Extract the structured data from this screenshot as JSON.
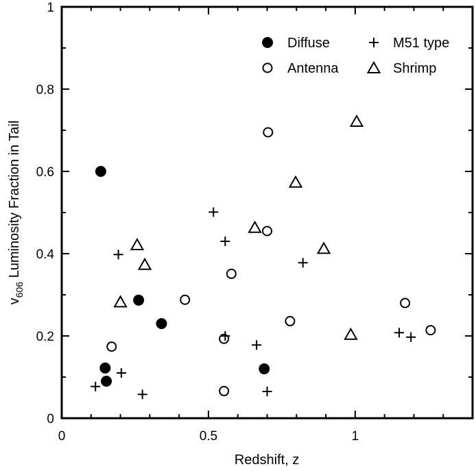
{
  "chart_data": {
    "type": "scatter",
    "title": "",
    "xlabel": "Redshift, z",
    "ylabel_main": "v",
    "ylabel_sub": "606",
    "ylabel_rest": " Luminosity Fraction in Tail",
    "xlim": [
      0,
      1.4
    ],
    "ylim": [
      0,
      1
    ],
    "xticks": [
      0,
      0.5,
      1
    ],
    "xtick_labels": [
      "0",
      "0.5",
      "1"
    ],
    "yticks": [
      0,
      0.2,
      0.4,
      0.6,
      0.8,
      1
    ],
    "ytick_labels": [
      "0",
      "0.2",
      "0.4",
      "0.6",
      "0.8",
      "1"
    ],
    "grid": false,
    "legend_position": "top-right",
    "series": [
      {
        "name": "Diffuse",
        "marker": "filled-circle",
        "points": [
          {
            "x": 0.133,
            "y": 0.6
          },
          {
            "x": 0.262,
            "y": 0.287
          },
          {
            "x": 0.34,
            "y": 0.23
          },
          {
            "x": 0.148,
            "y": 0.122
          },
          {
            "x": 0.152,
            "y": 0.09
          },
          {
            "x": 0.69,
            "y": 0.12
          }
        ]
      },
      {
        "name": "M51 type",
        "marker": "plus",
        "points": [
          {
            "x": 0.517,
            "y": 0.501
          },
          {
            "x": 0.557,
            "y": 0.43
          },
          {
            "x": 0.193,
            "y": 0.398
          },
          {
            "x": 0.822,
            "y": 0.378
          },
          {
            "x": 0.557,
            "y": 0.2
          },
          {
            "x": 0.664,
            "y": 0.178
          },
          {
            "x": 1.15,
            "y": 0.208
          },
          {
            "x": 1.19,
            "y": 0.197
          },
          {
            "x": 0.203,
            "y": 0.11
          },
          {
            "x": 0.115,
            "y": 0.077
          },
          {
            "x": 0.275,
            "y": 0.058
          },
          {
            "x": 0.7,
            "y": 0.065
          }
        ]
      },
      {
        "name": "Antenna",
        "marker": "open-circle",
        "points": [
          {
            "x": 0.703,
            "y": 0.695
          },
          {
            "x": 0.7,
            "y": 0.455
          },
          {
            "x": 0.578,
            "y": 0.351
          },
          {
            "x": 0.42,
            "y": 0.288
          },
          {
            "x": 0.778,
            "y": 0.236
          },
          {
            "x": 1.17,
            "y": 0.28
          },
          {
            "x": 1.257,
            "y": 0.214
          },
          {
            "x": 0.553,
            "y": 0.193
          },
          {
            "x": 0.17,
            "y": 0.174
          },
          {
            "x": 0.553,
            "y": 0.066
          }
        ]
      },
      {
        "name": "Shrimp",
        "marker": "open-triangle",
        "points": [
          {
            "x": 1.005,
            "y": 0.72
          },
          {
            "x": 0.797,
            "y": 0.572
          },
          {
            "x": 0.658,
            "y": 0.462
          },
          {
            "x": 0.893,
            "y": 0.411
          },
          {
            "x": 0.257,
            "y": 0.42
          },
          {
            "x": 0.283,
            "y": 0.372
          },
          {
            "x": 0.2,
            "y": 0.281
          },
          {
            "x": 0.985,
            "y": 0.202
          }
        ]
      }
    ],
    "legend": [
      {
        "label": "Diffuse",
        "marker": "filled-circle"
      },
      {
        "label": "M51 type",
        "marker": "plus"
      },
      {
        "label": "Antenna",
        "marker": "open-circle"
      },
      {
        "label": "Shrimp",
        "marker": "open-triangle"
      }
    ]
  }
}
